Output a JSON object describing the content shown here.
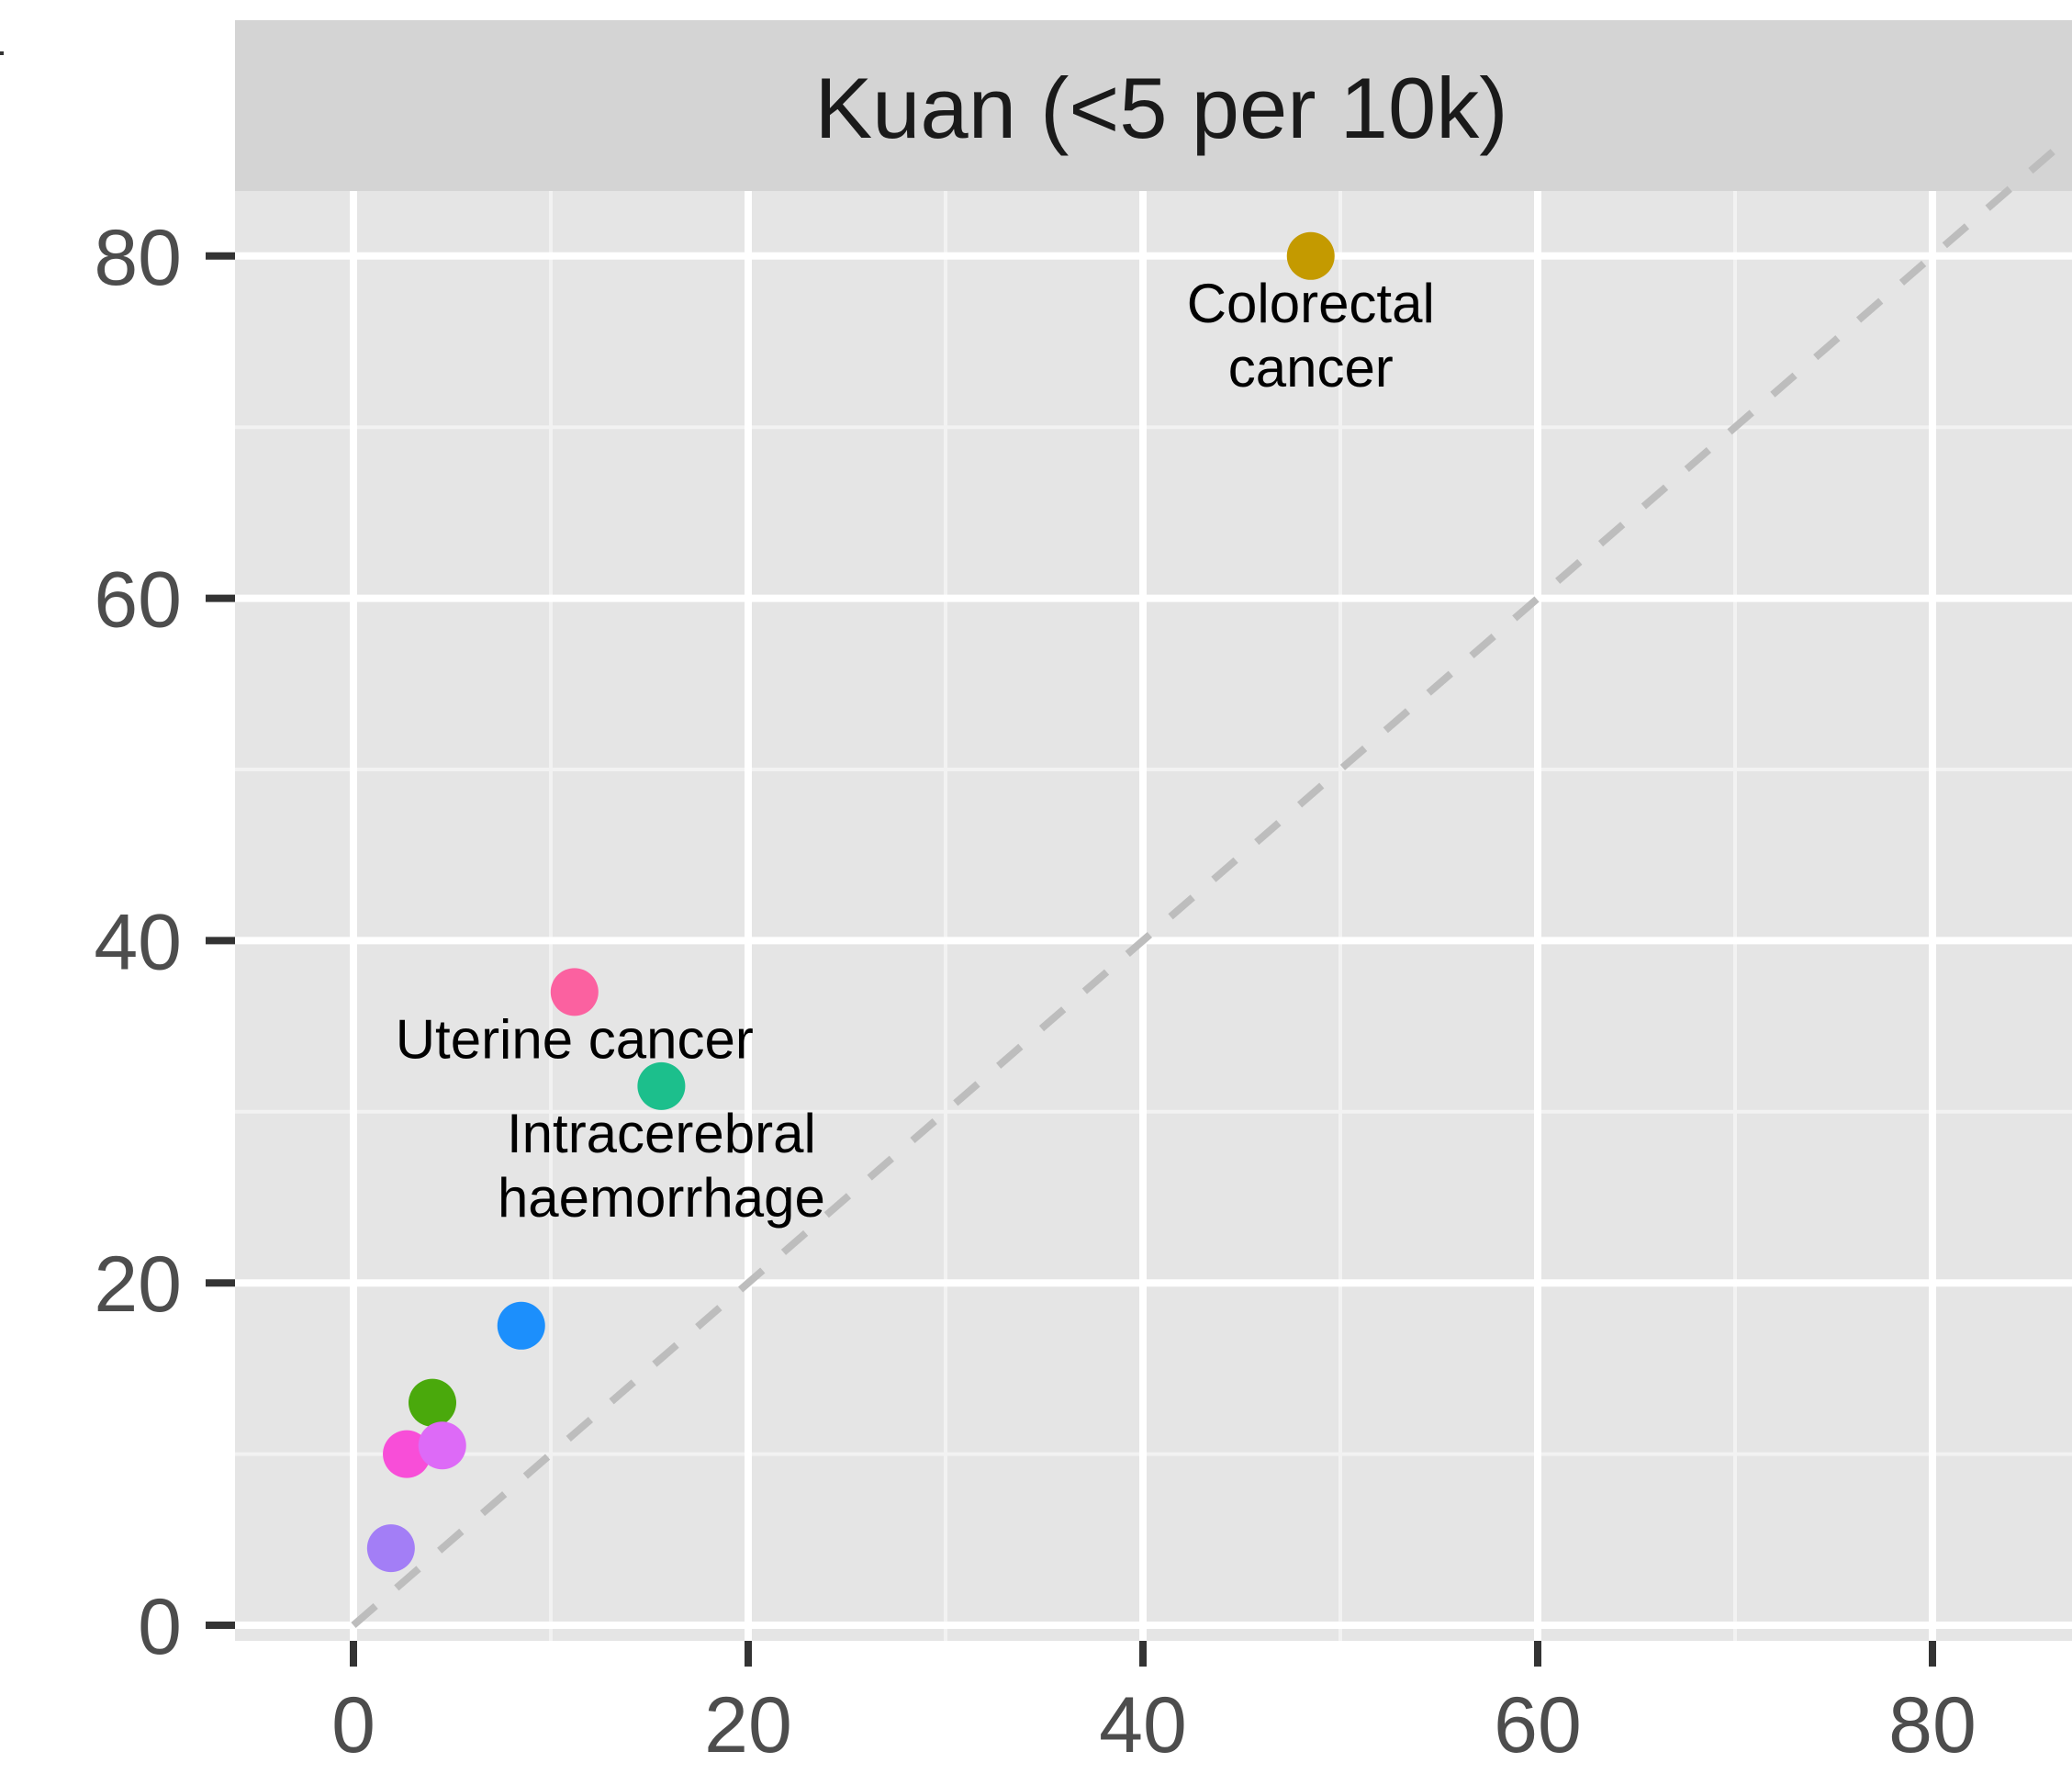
{
  "colors": {
    "panel_background": "#e5e5e5",
    "strip_background": "#d4d4d4",
    "grid_major": "#ffffff",
    "grid_minor": "#f2f2f2",
    "reference_line": "#bdbdbd",
    "axis_text": "#4d4d4d",
    "tick_mark": "#333333"
  },
  "chart_data": {
    "type": "scatter",
    "panel_title": "Kuan (<5 per 10k)",
    "title": "",
    "xlabel": "",
    "ylabel": "",
    "xlim": [
      -6,
      87
    ],
    "ylim": [
      -1,
      84
    ],
    "x_ticks": [
      0,
      20,
      40,
      60,
      80
    ],
    "y_ticks": [
      0,
      20,
      40,
      60,
      80
    ],
    "x_tick_labels": [
      "0",
      "20",
      "40",
      "60",
      "80"
    ],
    "y_tick_labels": [
      "0",
      "20",
      "40",
      "60",
      "80"
    ],
    "grid": true,
    "reference_line": {
      "type": "identity",
      "style": "dashed"
    },
    "points": [
      {
        "x": 48.5,
        "y": 80.0,
        "color": "#c49a00",
        "label": "Colorectal",
        "label2": "cancer"
      },
      {
        "x": 11.2,
        "y": 37.0,
        "color": "#fb61a0",
        "label": "Uterine cancer",
        "label2": ""
      },
      {
        "x": 15.6,
        "y": 31.5,
        "color": "#1cbf8c",
        "label": "Intracerebral",
        "label2": "haemorrhage"
      },
      {
        "x": 8.5,
        "y": 17.5,
        "color": "#1c8ffc",
        "label": "",
        "label2": ""
      },
      {
        "x": 4.0,
        "y": 13.0,
        "color": "#4aa90c",
        "label": "",
        "label2": ""
      },
      {
        "x": 2.7,
        "y": 10.0,
        "color": "#f84ed8",
        "label": "",
        "label2": ""
      },
      {
        "x": 4.5,
        "y": 10.5,
        "color": "#dd6af7",
        "label": "",
        "label2": ""
      },
      {
        "x": 1.9,
        "y": 4.5,
        "color": "#a37ef6",
        "label": "",
        "label2": ""
      }
    ]
  }
}
